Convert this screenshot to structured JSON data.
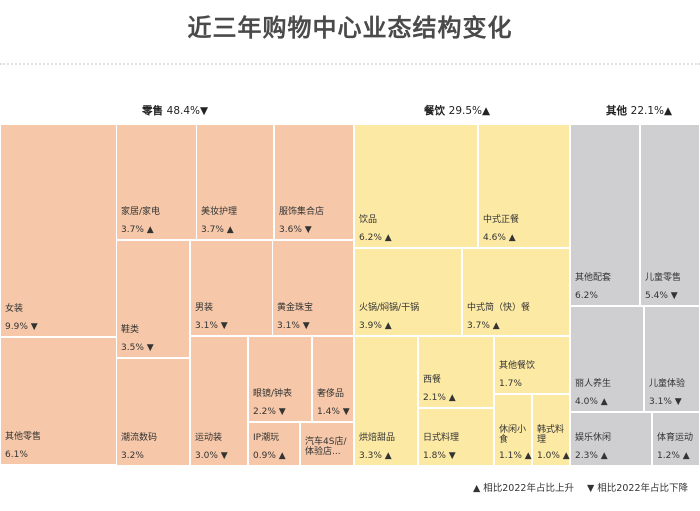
{
  "title": "近三年购物中心业态结构变化",
  "legend": {
    "up": "▲ 相比2022年占比上升",
    "down": "▼ 相比2022年占比下降"
  },
  "colors": {
    "retail": "#f6c8a9",
    "food": "#fce9a3",
    "other": "#cfcfd2"
  },
  "chart_data": {
    "type": "treemap",
    "groups": [
      {
        "key": "retail",
        "name": "零售",
        "share": "48.4%",
        "trend": "▼",
        "items": [
          {
            "name": "女装",
            "value": "9.9%",
            "trend": "▼"
          },
          {
            "name": "其他零售",
            "value": "6.1%",
            "trend": ""
          },
          {
            "name": "家居/家电",
            "value": "3.7%",
            "trend": "▲"
          },
          {
            "name": "美妆护理",
            "value": "3.7%",
            "trend": "▲"
          },
          {
            "name": "服饰集合店",
            "value": "3.6%",
            "trend": "▼"
          },
          {
            "name": "鞋类",
            "value": "3.5%",
            "trend": "▼"
          },
          {
            "name": "男装",
            "value": "3.1%",
            "trend": "▼"
          },
          {
            "name": "黄金珠宝",
            "value": "3.1%",
            "trend": "▼"
          },
          {
            "name": "潮流数码",
            "value": "3.2%",
            "trend": ""
          },
          {
            "name": "运动装",
            "value": "3.0%",
            "trend": "▼"
          },
          {
            "name": "眼镜/钟表",
            "value": "2.2%",
            "trend": "▼"
          },
          {
            "name": "奢侈品",
            "value": "1.4%",
            "trend": "▼"
          },
          {
            "name": "IP潮玩",
            "value": "0.9%",
            "trend": "▲"
          },
          {
            "name": "汽车4S店/体验店...",
            "value": "",
            "trend": ""
          }
        ]
      },
      {
        "key": "food",
        "name": "餐饮",
        "share": "29.5%",
        "trend": "▲",
        "items": [
          {
            "name": "饮品",
            "value": "6.2%",
            "trend": "▲"
          },
          {
            "name": "中式正餐",
            "value": "4.6%",
            "trend": "▲"
          },
          {
            "name": "火锅/焖锅/干锅",
            "value": "3.9%",
            "trend": "▲"
          },
          {
            "name": "中式简（快）餐",
            "value": "3.7%",
            "trend": "▲"
          },
          {
            "name": "烘焙甜品",
            "value": "3.3%",
            "trend": "▲"
          },
          {
            "name": "西餐",
            "value": "2.1%",
            "trend": "▲"
          },
          {
            "name": "日式料理",
            "value": "1.8%",
            "trend": "▼"
          },
          {
            "name": "其他餐饮",
            "value": "1.7%",
            "trend": ""
          },
          {
            "name": "休闲小食",
            "value": "1.1%",
            "trend": "▲"
          },
          {
            "name": "韩式料理",
            "value": "1.0%",
            "trend": "▲"
          }
        ]
      },
      {
        "key": "other",
        "name": "其他",
        "share": "22.1%",
        "trend": "▲",
        "items": [
          {
            "name": "其他配套",
            "value": "6.2%",
            "trend": ""
          },
          {
            "name": "儿童零售",
            "value": "5.4%",
            "trend": "▼"
          },
          {
            "name": "丽人养生",
            "value": "4.0%",
            "trend": "▲"
          },
          {
            "name": "儿童体验",
            "value": "3.1%",
            "trend": "▼"
          },
          {
            "name": "娱乐休闲",
            "value": "2.3%",
            "trend": "▲"
          },
          {
            "name": "体育运动",
            "value": "1.2%",
            "trend": "▲"
          }
        ]
      }
    ]
  }
}
